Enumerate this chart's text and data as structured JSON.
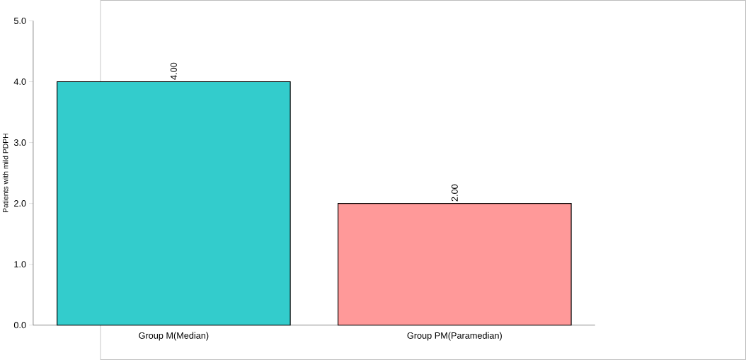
{
  "chart_data": {
    "type": "bar",
    "ylabel": "Patients with mild PDPH",
    "categories": [
      "Group M(Median)",
      "Group PM(Paramedian)"
    ],
    "values": [
      4,
      2
    ],
    "colors": [
      "#33cccc",
      "#ff9999"
    ],
    "value_labels": [
      "4.00",
      "2.00"
    ],
    "ylim": [
      0,
      5
    ],
    "yticks": [
      {
        "value": 0,
        "label": "0.0"
      },
      {
        "value": 1,
        "label": "1.0"
      },
      {
        "value": 2,
        "label": "2.0"
      },
      {
        "value": 3,
        "label": "3.0"
      },
      {
        "value": 4,
        "label": "4.0"
      },
      {
        "value": 5,
        "label": "5.0"
      }
    ]
  }
}
